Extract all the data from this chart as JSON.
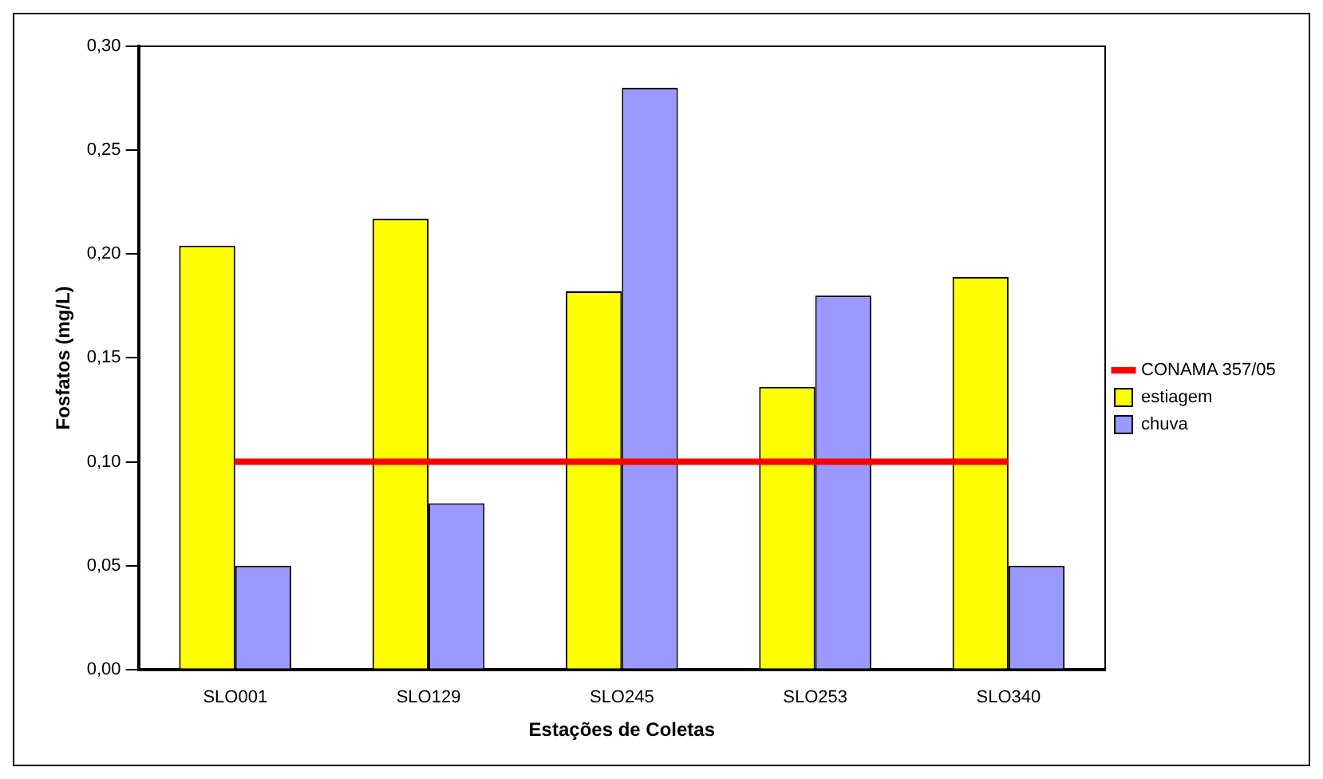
{
  "chart_data": {
    "type": "bar",
    "xlabel": "Estações de Coletas",
    "ylabel": "Fosfatos (mg/L)",
    "categories": [
      "SLO001",
      "SLO129",
      "SLO245",
      "SLO253",
      "SLO340"
    ],
    "series": [
      {
        "name": "estiagem",
        "color": "#ffff00",
        "values": [
          0.204,
          0.217,
          0.182,
          0.136,
          0.189
        ]
      },
      {
        "name": "chuva",
        "color": "#9999ff",
        "values": [
          0.05,
          0.08,
          0.28,
          0.18,
          0.05
        ]
      },
      {
        "name": "CONAMA 357/05",
        "type": "line",
        "color": "#ff0000",
        "values": [
          0.1,
          0.1,
          0.1,
          0.1,
          0.1
        ]
      }
    ],
    "ylim": [
      0,
      0.3
    ],
    "yticks": [
      {
        "value": 0,
        "label": "0,00"
      },
      {
        "value": 0.05,
        "label": "0,05"
      },
      {
        "value": 0.1,
        "label": "0,10"
      },
      {
        "value": 0.15,
        "label": "0,15"
      },
      {
        "value": 0.2,
        "label": "0,20"
      },
      {
        "value": 0.25,
        "label": "0,25"
      },
      {
        "value": 0.3,
        "label": "0,30"
      }
    ],
    "grid": false,
    "legend": "right",
    "marker": "none"
  }
}
